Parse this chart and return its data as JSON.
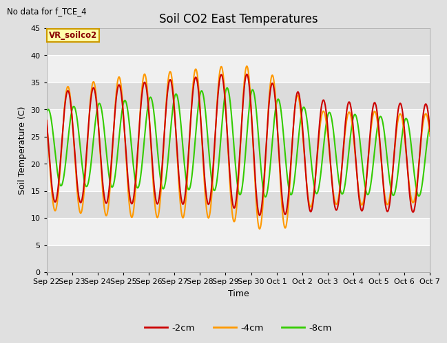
{
  "title": "Soil CO2 East Temperatures",
  "subtitle": "No data for f_TCE_4",
  "ylabel": "Soil Temperature (C)",
  "xlabel": "Time",
  "ylim": [
    0,
    45
  ],
  "yticks": [
    0,
    5,
    10,
    15,
    20,
    25,
    30,
    35,
    40,
    45
  ],
  "legend_label": "VR_soilco2",
  "series_labels": [
    "-2cm",
    "-4cm",
    "-8cm"
  ],
  "series_colors": [
    "#cc0000",
    "#ff9900",
    "#33cc00"
  ],
  "line_width": 1.5,
  "bg_color": "#e0e0e0",
  "tick_labels": [
    "Sep 22",
    "Sep 23",
    "Sep 24",
    "Sep 25",
    "Sep 26",
    "Sep 27",
    "Sep 28",
    "Sep 29",
    "Sep 30",
    "Oct 1",
    "Oct 2",
    "Oct 3",
    "Oct 4",
    "Oct 5",
    "Oct 6",
    "Oct 7"
  ],
  "title_fontsize": 12,
  "axis_fontsize": 9,
  "tick_fontsize": 8
}
